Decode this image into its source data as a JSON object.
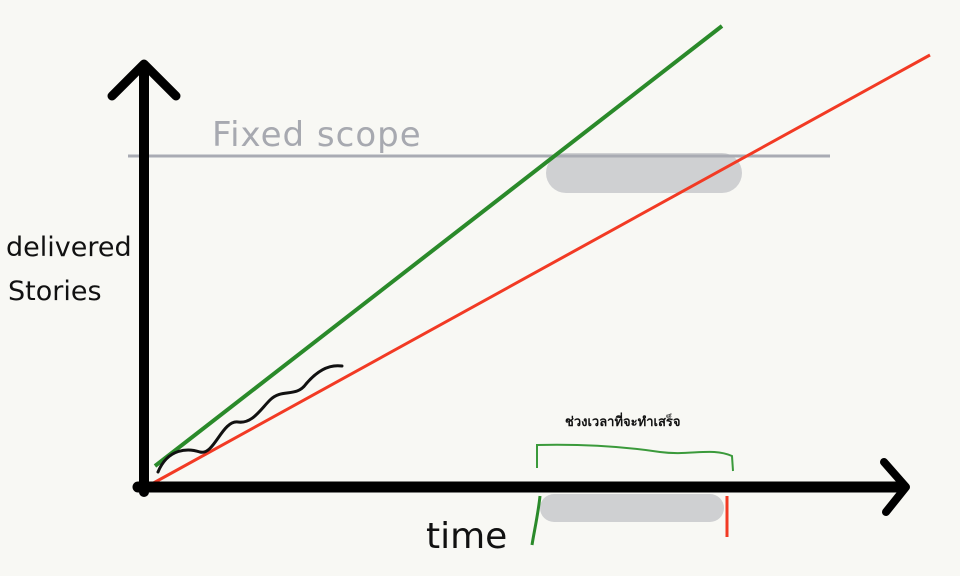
{
  "diagram": {
    "scope_label": "Fixed scope",
    "y_axis_label_line1": "delivered",
    "y_axis_label_line2": "Stories",
    "x_axis_label": "time",
    "completion_window_label": "ช่วงเวลาที่จะทำเสร็จ",
    "colors": {
      "axis": "#000000",
      "scope_line": "#a9abb3",
      "scope_text": "#a7a9b0",
      "optimistic_line": "#2a8a2a",
      "pessimistic_line": "#f23a24",
      "actual_progress": "#111111",
      "blur_region": "#cfd0d2",
      "bracket": "#3b9a3b"
    }
  }
}
